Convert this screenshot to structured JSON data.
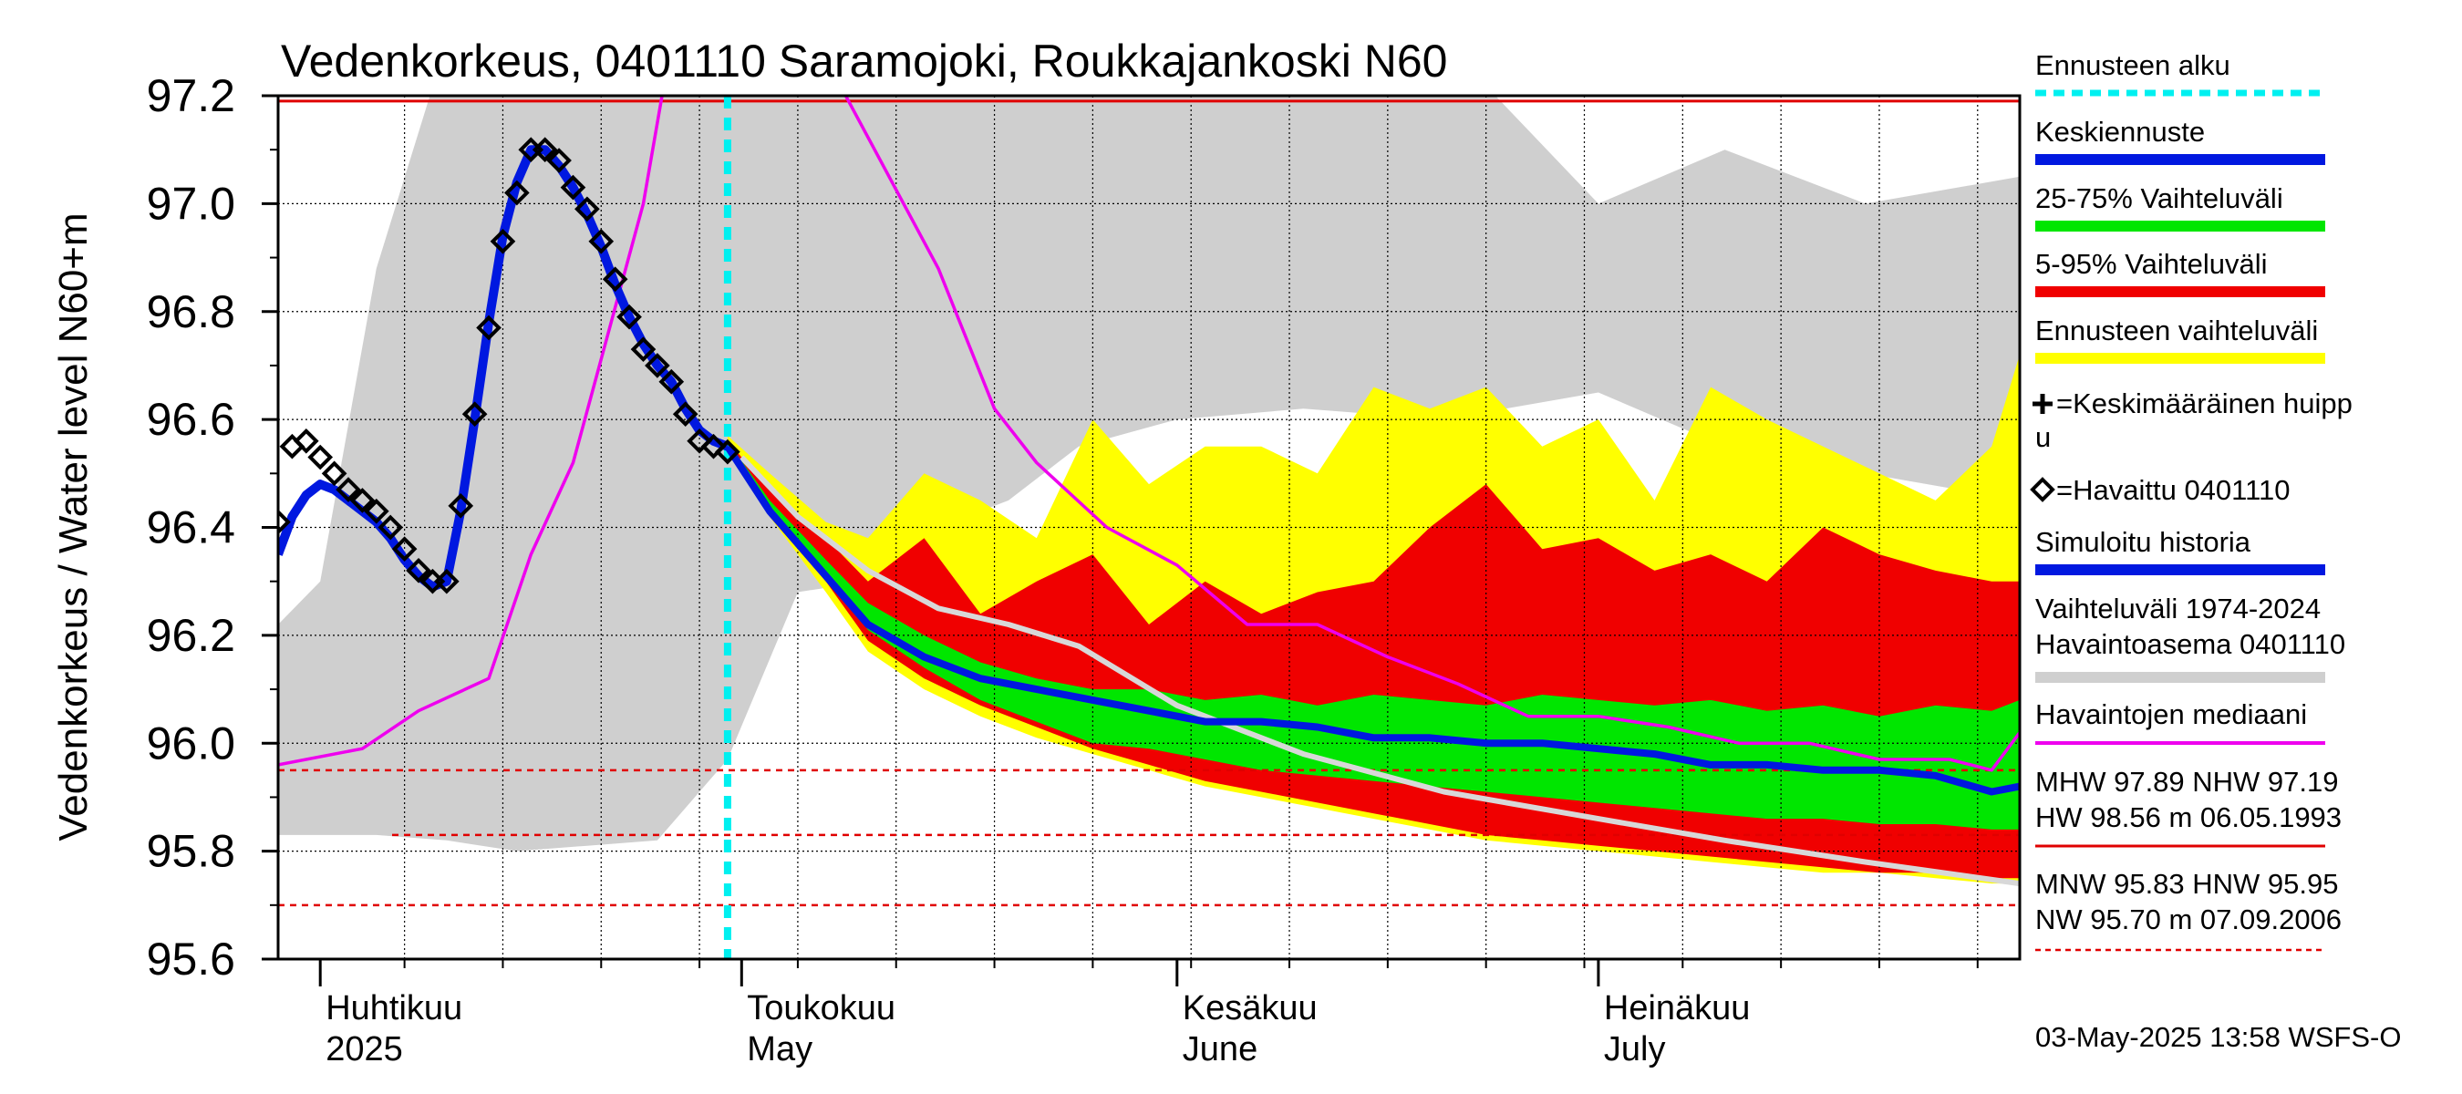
{
  "chart_data": {
    "type": "line",
    "title": "Vedenkorkeus, 0401110 Saramojoki, Roukkajankoski N60",
    "ylabel": "Vedenkorkeus / Water level   N60+m",
    "ylim": [
      95.6,
      97.2
    ],
    "yticks": [
      "95.6",
      "95.8",
      "96.0",
      "96.2",
      "96.4",
      "96.6",
      "96.8",
      "97.0",
      "97.2"
    ],
    "xlim": [
      "2025-03-29",
      "2025-07-31"
    ],
    "xticks": [
      {
        "date": "2025-04-01",
        "fi": "Huhtikuu",
        "en": "2025"
      },
      {
        "date": "2025-05-01",
        "fi": "Toukokuu",
        "en": "May"
      },
      {
        "date": "2025-06-01",
        "fi": "Kesäkuu",
        "en": "June"
      },
      {
        "date": "2025-07-01",
        "fi": "Heinäkuu",
        "en": "July"
      }
    ],
    "grid": true,
    "legend_position": "right",
    "forecast_start": "2025-04-30",
    "hlines": [
      {
        "value": 97.19,
        "style": "solid"
      },
      {
        "value": 95.95,
        "style": "dashed"
      },
      {
        "value": 95.83,
        "style": "dashed"
      },
      {
        "value": 95.7,
        "style": "dashed"
      }
    ],
    "series": [
      {
        "name": "=Havaittu 0401110",
        "style": "markers",
        "x": [
          "2025-03-29",
          "2025-03-30",
          "2025-03-31",
          "2025-04-01",
          "2025-04-02",
          "2025-04-03",
          "2025-04-04",
          "2025-04-05",
          "2025-04-06",
          "2025-04-07",
          "2025-04-08",
          "2025-04-09",
          "2025-04-10",
          "2025-04-11",
          "2025-04-12",
          "2025-04-13",
          "2025-04-14",
          "2025-04-15",
          "2025-04-16",
          "2025-04-17",
          "2025-04-18",
          "2025-04-19",
          "2025-04-20",
          "2025-04-21",
          "2025-04-22",
          "2025-04-23",
          "2025-04-24",
          "2025-04-25",
          "2025-04-26",
          "2025-04-27",
          "2025-04-28",
          "2025-04-29",
          "2025-04-30"
        ],
        "values": [
          96.41,
          96.55,
          96.56,
          96.53,
          96.5,
          96.47,
          96.45,
          96.43,
          96.4,
          96.36,
          96.32,
          96.3,
          96.3,
          96.44,
          96.61,
          96.77,
          96.93,
          97.02,
          97.1,
          97.1,
          97.08,
          97.03,
          96.99,
          96.93,
          96.86,
          96.79,
          96.73,
          96.7,
          96.67,
          96.61,
          96.56,
          96.55,
          96.54
        ]
      },
      {
        "name": "Simuloitu historia",
        "style": "line",
        "x": [
          "2025-03-29",
          "2025-03-30",
          "2025-03-31",
          "2025-04-01",
          "2025-04-02",
          "2025-04-03",
          "2025-04-04",
          "2025-04-05",
          "2025-04-06",
          "2025-04-07",
          "2025-04-08",
          "2025-04-09",
          "2025-04-10",
          "2025-04-11",
          "2025-04-12",
          "2025-04-13",
          "2025-04-14",
          "2025-04-15",
          "2025-04-16",
          "2025-04-17",
          "2025-04-18",
          "2025-04-19",
          "2025-04-20",
          "2025-04-21",
          "2025-04-22",
          "2025-04-23",
          "2025-04-24",
          "2025-04-25",
          "2025-04-26",
          "2025-04-27",
          "2025-04-28",
          "2025-04-29",
          "2025-04-30"
        ],
        "values": [
          96.35,
          96.42,
          96.46,
          96.48,
          96.47,
          96.45,
          96.43,
          96.41,
          96.38,
          96.34,
          96.31,
          96.29,
          96.3,
          96.43,
          96.6,
          96.78,
          96.94,
          97.04,
          97.1,
          97.1,
          97.07,
          97.03,
          96.98,
          96.92,
          96.85,
          96.79,
          96.74,
          96.7,
          96.67,
          96.62,
          96.58,
          96.56,
          96.55
        ]
      },
      {
        "name": "Keskiennuste",
        "style": "line",
        "x": [
          "2025-04-30",
          "2025-05-03",
          "2025-05-07",
          "2025-05-10",
          "2025-05-14",
          "2025-05-18",
          "2025-05-22",
          "2025-05-26",
          "2025-05-30",
          "2025-06-03",
          "2025-06-07",
          "2025-06-11",
          "2025-06-15",
          "2025-06-19",
          "2025-06-23",
          "2025-06-27",
          "2025-07-01",
          "2025-07-05",
          "2025-07-09",
          "2025-07-13",
          "2025-07-17",
          "2025-07-21",
          "2025-07-25",
          "2025-07-29",
          "2025-07-31"
        ],
        "values": [
          96.55,
          96.43,
          96.31,
          96.22,
          96.16,
          96.12,
          96.1,
          96.08,
          96.06,
          96.04,
          96.04,
          96.03,
          96.01,
          96.01,
          96.0,
          96.0,
          95.99,
          95.98,
          95.96,
          95.96,
          95.95,
          95.95,
          95.94,
          95.91,
          95.92
        ]
      },
      {
        "name": "Havaintojen mediaani",
        "style": "line",
        "x": [
          "2025-03-29",
          "2025-04-04",
          "2025-04-08",
          "2025-04-13",
          "2025-04-16",
          "2025-04-19",
          "2025-04-24",
          "2025-04-28",
          "2025-05-02",
          "2025-05-08",
          "2025-05-15",
          "2025-05-19",
          "2025-05-22",
          "2025-05-27",
          "2025-06-01",
          "2025-06-06",
          "2025-06-11",
          "2025-06-16",
          "2025-06-21",
          "2025-06-26",
          "2025-07-01",
          "2025-07-06",
          "2025-07-11",
          "2025-07-16",
          "2025-07-21",
          "2025-07-26",
          "2025-07-29",
          "2025-07-31"
        ],
        "values": [
          95.96,
          95.99,
          96.06,
          96.12,
          96.35,
          96.52,
          97.0,
          97.6,
          97.5,
          97.22,
          96.88,
          96.62,
          96.52,
          96.4,
          96.33,
          96.22,
          96.22,
          96.16,
          96.11,
          96.05,
          96.05,
          96.03,
          96.0,
          96.0,
          95.97,
          95.97,
          95.95,
          96.02
        ]
      },
      {
        "name": "Observed extremes 1974-2024",
        "style": "line",
        "x": [
          "2025-05-01",
          "2025-05-05",
          "2025-05-10",
          "2025-05-15",
          "2025-05-20",
          "2025-05-25",
          "2025-06-01",
          "2025-06-10",
          "2025-06-20",
          "2025-07-01",
          "2025-07-10",
          "2025-07-20",
          "2025-07-31"
        ],
        "values": [
          96.53,
          96.42,
          96.32,
          96.25,
          96.22,
          96.18,
          96.07,
          95.98,
          95.91,
          95.86,
          95.82,
          95.78,
          95.74
        ]
      }
    ],
    "bands": [
      {
        "name": "Vaihteluväli 1974-2024 Havaintoasema 0401110",
        "x": [
          "2025-03-29",
          "2025-04-01",
          "2025-04-05",
          "2025-04-10",
          "2025-04-15",
          "2025-04-20",
          "2025-04-25",
          "2025-04-30",
          "2025-05-05",
          "2025-05-10",
          "2025-05-15",
          "2025-05-20",
          "2025-05-25",
          "2025-06-01",
          "2025-06-10",
          "2025-06-20",
          "2025-07-01",
          "2025-07-10",
          "2025-07-20",
          "2025-07-31"
        ],
        "low": [
          95.83,
          95.83,
          95.83,
          95.82,
          95.8,
          95.81,
          95.82,
          95.97,
          96.28,
          96.3,
          96.4,
          96.45,
          96.55,
          96.6,
          96.62,
          96.6,
          96.65,
          96.55,
          96.5,
          96.45
        ],
        "high": [
          96.22,
          96.3,
          96.88,
          97.3,
          97.3,
          97.3,
          97.3,
          97.3,
          97.3,
          97.3,
          97.3,
          97.3,
          97.3,
          97.3,
          97.25,
          97.3,
          97.0,
          97.1,
          97.0,
          97.05
        ]
      },
      {
        "name": "Ennusteen vaihteluväli",
        "x": [
          "2025-04-30",
          "2025-05-03",
          "2025-05-07",
          "2025-05-10",
          "2025-05-14",
          "2025-05-18",
          "2025-05-22",
          "2025-05-26",
          "2025-05-30",
          "2025-06-03",
          "2025-06-07",
          "2025-06-11",
          "2025-06-15",
          "2025-06-19",
          "2025-06-23",
          "2025-06-27",
          "2025-07-01",
          "2025-07-05",
          "2025-07-09",
          "2025-07-13",
          "2025-07-17",
          "2025-07-21",
          "2025-07-25",
          "2025-07-29",
          "2025-07-31"
        ],
        "low": [
          96.55,
          96.42,
          96.28,
          96.17,
          96.1,
          96.05,
          96.01,
          95.98,
          95.95,
          95.92,
          95.9,
          95.88,
          95.86,
          95.84,
          95.82,
          95.81,
          95.8,
          95.79,
          95.78,
          95.77,
          95.76,
          95.76,
          95.75,
          95.74,
          95.74
        ],
        "high": [
          96.57,
          96.5,
          96.41,
          96.38,
          96.5,
          96.45,
          96.38,
          96.6,
          96.48,
          96.55,
          96.55,
          96.5,
          96.66,
          96.62,
          96.66,
          96.55,
          96.6,
          96.45,
          96.66,
          96.6,
          96.55,
          96.5,
          96.45,
          96.55,
          96.72
        ]
      },
      {
        "name": "5-95% Vaihteluväli",
        "x": [
          "2025-04-30",
          "2025-05-03",
          "2025-05-07",
          "2025-05-10",
          "2025-05-14",
          "2025-05-18",
          "2025-05-22",
          "2025-05-26",
          "2025-05-30",
          "2025-06-03",
          "2025-06-07",
          "2025-06-11",
          "2025-06-15",
          "2025-06-19",
          "2025-06-23",
          "2025-06-27",
          "2025-07-01",
          "2025-07-05",
          "2025-07-09",
          "2025-07-13",
          "2025-07-17",
          "2025-07-21",
          "2025-07-25",
          "2025-07-29",
          "2025-07-31"
        ],
        "low": [
          96.55,
          96.42,
          96.3,
          96.19,
          96.12,
          96.07,
          96.03,
          95.99,
          95.96,
          95.93,
          95.91,
          95.89,
          95.87,
          95.85,
          95.83,
          95.82,
          95.81,
          95.8,
          95.79,
          95.78,
          95.77,
          95.76,
          95.76,
          95.75,
          95.75
        ],
        "high": [
          96.56,
          96.47,
          96.38,
          96.3,
          96.38,
          96.24,
          96.3,
          96.35,
          96.22,
          96.3,
          96.24,
          96.28,
          96.3,
          96.4,
          96.48,
          96.36,
          96.38,
          96.32,
          96.35,
          96.3,
          96.4,
          96.35,
          96.32,
          96.3,
          96.3
        ]
      },
      {
        "name": "25-75% Vaihteluväli",
        "x": [
          "2025-04-30",
          "2025-05-03",
          "2025-05-07",
          "2025-05-10",
          "2025-05-14",
          "2025-05-18",
          "2025-05-22",
          "2025-05-26",
          "2025-05-30",
          "2025-06-03",
          "2025-06-07",
          "2025-06-11",
          "2025-06-15",
          "2025-06-19",
          "2025-06-23",
          "2025-06-27",
          "2025-07-01",
          "2025-07-05",
          "2025-07-09",
          "2025-07-13",
          "2025-07-17",
          "2025-07-21",
          "2025-07-25",
          "2025-07-29",
          "2025-07-31"
        ],
        "low": [
          96.55,
          96.43,
          96.31,
          96.21,
          96.14,
          96.08,
          96.04,
          96.0,
          95.99,
          95.97,
          95.95,
          95.94,
          95.93,
          95.92,
          95.91,
          95.9,
          95.89,
          95.88,
          95.87,
          95.86,
          95.86,
          95.85,
          95.85,
          95.84,
          95.84
        ],
        "high": [
          96.56,
          96.45,
          96.34,
          96.26,
          96.2,
          96.15,
          96.12,
          96.1,
          96.1,
          96.08,
          96.09,
          96.07,
          96.09,
          96.08,
          96.07,
          96.09,
          96.08,
          96.07,
          96.08,
          96.06,
          96.07,
          96.05,
          96.07,
          96.06,
          96.08
        ]
      }
    ]
  },
  "legend": {
    "items": [
      {
        "label": "Ennusteen alku",
        "color": "#00f0f0",
        "style": "dashed"
      },
      {
        "label": "Keskiennuste",
        "color": "#0018e0",
        "style": "solid"
      },
      {
        "label": "25-75% Vaihteluväli",
        "color": "#00e600",
        "style": "solid"
      },
      {
        "label": "5-95% Vaihteluväli",
        "color": "#f00000",
        "style": "solid"
      },
      {
        "label": "Ennusteen vaihteluväli",
        "color": "#ffff00",
        "style": "solid"
      }
    ],
    "peak_line1": "=Keskimääräinen huipp",
    "peak_line2": "u",
    "observed_label": "=Havaittu 0401110",
    "sim_label": "Simuloitu historia",
    "sim_color": "#0018e0",
    "range_line1": "Vaihteluväli 1974-2024",
    "range_line2": " Havaintoasema 0401110",
    "range_color": "#cfcfcf",
    "median_label": "Havaintojen mediaani",
    "median_color": "#ee00ee",
    "stats_line1": "MHW  97.89 NHW  97.19",
    "stats_line2": "HW  98.56 m 06.05.1993",
    "stats_line3": "MNW  95.83 HNW  95.95",
    "stats_line4": "NW  95.70 m 07.09.2006"
  },
  "footer": "03-May-2025 13:58 WSFS-O"
}
